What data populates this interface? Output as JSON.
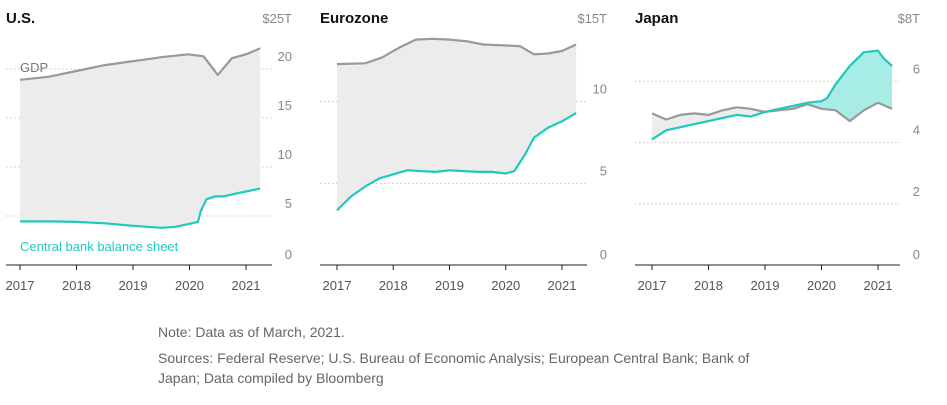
{
  "footer": {
    "note": "Note: Data as of March, 2021.",
    "sources_line1": "Sources: Federal Reserve; U.S. Bureau of Economic Analysis; European Central Bank; Bank of",
    "sources_line2": "Japan; Data compiled by Bloomberg"
  },
  "colors": {
    "gdp": "#999999",
    "balance": "#1fc9bd",
    "gap_fill": "#ececec",
    "bs_above_fill": "#a8ece6",
    "grid": "#c8c8c8",
    "tick_text": "#888888",
    "title": "#111111"
  },
  "chart_data": [
    {
      "type": "line",
      "title": "U.S.",
      "unit_label": "$25T",
      "ylim": [
        0,
        25
      ],
      "yticks": [
        5,
        10,
        15,
        20
      ],
      "ytick_labels": [
        "5",
        "10",
        "15",
        "20"
      ],
      "zero_label": "0",
      "xticks": [
        2017,
        2018,
        2019,
        2020,
        2021
      ],
      "xtick_labels": [
        "2017",
        "2018",
        "2019",
        "2020",
        "2021"
      ],
      "xlim": [
        2016.8,
        2021.55
      ],
      "annotations": {
        "gdp_label": "GDP",
        "balance_label": "Central bank balance sheet"
      },
      "series": [
        {
          "name": "GDP",
          "x": [
            2017.0,
            2017.5,
            2018.0,
            2018.5,
            2019.0,
            2019.5,
            2019.97,
            2020.25,
            2020.5,
            2020.75,
            2021.0,
            2021.25
          ],
          "values": [
            18.9,
            19.2,
            19.8,
            20.4,
            20.8,
            21.2,
            21.5,
            21.3,
            19.4,
            21.1,
            21.5,
            22.1
          ]
        },
        {
          "name": "Central bank balance sheet",
          "x": [
            2017.0,
            2017.5,
            2018.0,
            2018.5,
            2019.0,
            2019.5,
            2019.75,
            2020.0,
            2020.15,
            2020.2,
            2020.3,
            2020.45,
            2020.6,
            2020.75,
            2021.0,
            2021.25
          ],
          "values": [
            4.45,
            4.45,
            4.4,
            4.25,
            4.0,
            3.8,
            3.9,
            4.2,
            4.4,
            5.5,
            6.7,
            7.0,
            7.0,
            7.2,
            7.5,
            7.8
          ]
        }
      ]
    },
    {
      "type": "line",
      "title": "Eurozone",
      "unit_label": "$15T",
      "ylim": [
        0,
        15
      ],
      "yticks": [
        5,
        10
      ],
      "ytick_labels": [
        "5",
        "10"
      ],
      "zero_label": "0",
      "xticks": [
        2017,
        2018,
        2019,
        2020,
        2021
      ],
      "xtick_labels": [
        "2017",
        "2018",
        "2019",
        "2020",
        "2021"
      ],
      "xlim": [
        2016.8,
        2021.55
      ],
      "series": [
        {
          "name": "GDP",
          "x": [
            2017.0,
            2017.5,
            2017.8,
            2018.1,
            2018.4,
            2018.7,
            2019.0,
            2019.3,
            2019.6,
            2019.95,
            2020.25,
            2020.5,
            2020.75,
            2021.0,
            2021.25
          ],
          "values": [
            12.3,
            12.35,
            12.7,
            13.3,
            13.8,
            13.85,
            13.8,
            13.7,
            13.5,
            13.45,
            13.4,
            12.9,
            12.95,
            13.1,
            13.5
          ]
        },
        {
          "name": "Central bank balance sheet",
          "x": [
            2017.0,
            2017.25,
            2017.5,
            2017.75,
            2018.0,
            2018.25,
            2018.5,
            2018.75,
            2019.0,
            2019.25,
            2019.5,
            2019.75,
            2020.0,
            2020.15,
            2020.35,
            2020.5,
            2020.75,
            2021.0,
            2021.25
          ],
          "values": [
            3.35,
            4.2,
            4.8,
            5.3,
            5.55,
            5.8,
            5.75,
            5.7,
            5.8,
            5.75,
            5.7,
            5.7,
            5.6,
            5.75,
            6.8,
            7.8,
            8.4,
            8.8,
            9.3
          ]
        }
      ]
    },
    {
      "type": "line",
      "title": "Japan",
      "unit_label": "$8T",
      "ylim": [
        0,
        8
      ],
      "yticks": [
        2,
        4,
        6
      ],
      "ytick_labels": [
        "2",
        "4",
        "6"
      ],
      "zero_label": "0",
      "xticks": [
        2017,
        2018,
        2019,
        2020,
        2021
      ],
      "xtick_labels": [
        "2017",
        "2018",
        "2019",
        "2020",
        "2021"
      ],
      "xlim": [
        2016.8,
        2021.55
      ],
      "series": [
        {
          "name": "GDP",
          "x": [
            2017.0,
            2017.25,
            2017.5,
            2017.75,
            2018.0,
            2018.25,
            2018.5,
            2018.75,
            2019.0,
            2019.25,
            2019.5,
            2019.75,
            2020.0,
            2020.25,
            2020.5,
            2020.75,
            2021.0,
            2021.25
          ],
          "values": [
            4.95,
            4.75,
            4.9,
            4.95,
            4.9,
            5.05,
            5.15,
            5.1,
            5.0,
            5.05,
            5.1,
            5.25,
            5.1,
            5.05,
            4.7,
            5.05,
            5.3,
            5.1
          ]
        },
        {
          "name": "Central bank balance sheet",
          "x": [
            2017.0,
            2017.25,
            2017.5,
            2017.75,
            2018.0,
            2018.25,
            2018.5,
            2018.75,
            2019.0,
            2019.25,
            2019.5,
            2019.75,
            2020.0,
            2020.1,
            2020.25,
            2020.5,
            2020.75,
            2021.0,
            2021.1,
            2021.25
          ],
          "values": [
            4.1,
            4.4,
            4.5,
            4.6,
            4.7,
            4.8,
            4.9,
            4.85,
            5.0,
            5.1,
            5.2,
            5.3,
            5.35,
            5.45,
            5.9,
            6.5,
            6.95,
            7.0,
            6.75,
            6.5
          ]
        }
      ]
    }
  ]
}
